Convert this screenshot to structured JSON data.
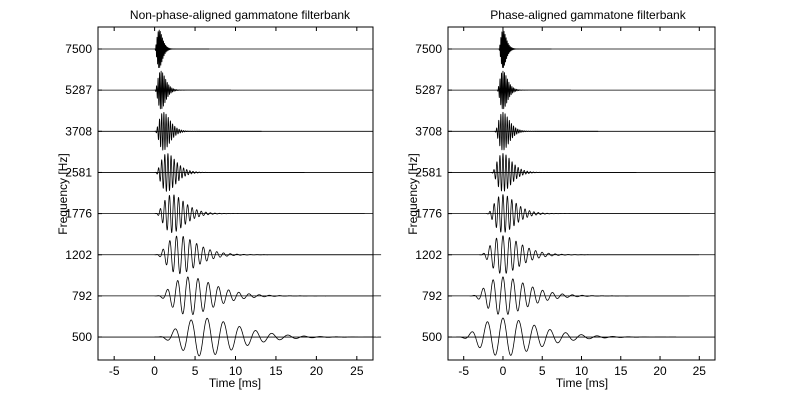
{
  "chart_data": [
    {
      "type": "line",
      "title": "Non-phase-aligned gammatone filterbank",
      "xlabel": "Time [ms]",
      "ylabel": "Frequency [Hz]",
      "xlim": [
        -7,
        27
      ],
      "xticks": [
        -5,
        0,
        5,
        10,
        15,
        20,
        25
      ],
      "center_frequencies": [
        7500,
        5287,
        3708,
        2581,
        1776,
        1202,
        792,
        500
      ],
      "ytick_labels": [
        "7500",
        "5287",
        "3708",
        "2581",
        "1776",
        "1202",
        "792",
        "500"
      ],
      "phase_aligned": false,
      "filter_order": 4,
      "grid": false,
      "color": "#000000"
    },
    {
      "type": "line",
      "title": "Phase-aligned gammatone filterbank",
      "xlabel": "Time [ms]",
      "ylabel": "Frequency [Hz]",
      "xlim": [
        -7,
        27
      ],
      "xticks": [
        -5,
        0,
        5,
        10,
        15,
        20,
        25
      ],
      "center_frequencies": [
        7500,
        5287,
        3708,
        2581,
        1776,
        1202,
        792,
        500
      ],
      "ytick_labels": [
        "7500",
        "5287",
        "3708",
        "2581",
        "1776",
        "1202",
        "792",
        "500"
      ],
      "phase_aligned": true,
      "filter_order": 4,
      "grid": false,
      "color": "#000000"
    }
  ]
}
